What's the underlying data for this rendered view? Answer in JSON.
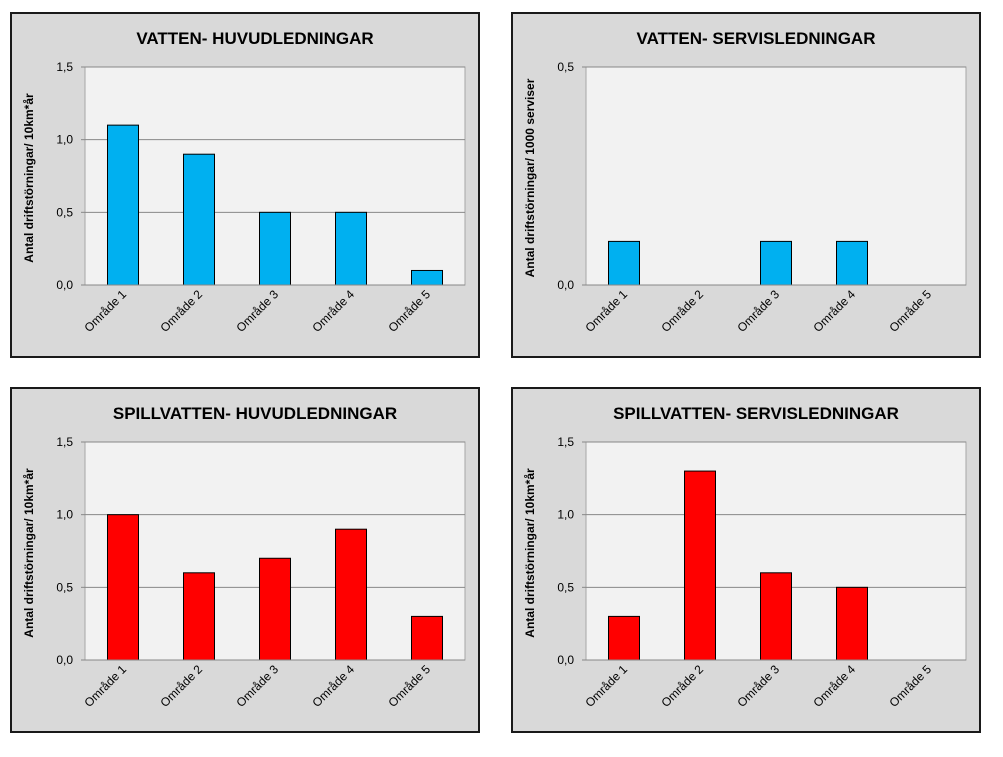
{
  "colors": {
    "water": "#00b0f0",
    "sewage": "#ff0000",
    "plot_bg": "#f2f2f2",
    "panel_bg": "#d9d9d9",
    "grid": "#888888"
  },
  "chart_data": [
    {
      "type": "bar",
      "title": "VATTEN- HUVUDLEDNINGAR",
      "ylabel": "Antal driftstörningar/ 10km*år",
      "xlabel": "",
      "categories": [
        "Område 1",
        "Område 2",
        "Område 3",
        "Område 4",
        "Område 5"
      ],
      "values": [
        1.1,
        0.9,
        0.5,
        0.5,
        0.1
      ],
      "ylim": [
        0,
        1.5
      ],
      "yticks": [
        0,
        0.5,
        1.0,
        1.5
      ],
      "ytick_labels": [
        "0,0",
        "0,5",
        "1,0",
        "1,5"
      ],
      "grid": true,
      "color": "#00b0f0"
    },
    {
      "type": "bar",
      "title": "VATTEN- SERVISLEDNINGAR",
      "ylabel": "Antal driftstörningar/ 1000 serviser",
      "xlabel": "",
      "categories": [
        "Område 1",
        "Område 2",
        "Område 3",
        "Område 4",
        "Område 5"
      ],
      "values": [
        0.1,
        0,
        0.1,
        0.1,
        0
      ],
      "ylim": [
        0,
        0.5
      ],
      "yticks": [
        0,
        0.5
      ],
      "ytick_labels": [
        "0,0",
        "0,5"
      ],
      "grid": true,
      "color": "#00b0f0"
    },
    {
      "type": "bar",
      "title": "SPILLVATTEN- HUVUDLEDNINGAR",
      "ylabel": "Antal driftstörningar/ 10km*år",
      "xlabel": "",
      "categories": [
        "Område 1",
        "Område 2",
        "Område 3",
        "Område 4",
        "Område 5"
      ],
      "values": [
        1.0,
        0.6,
        0.7,
        0.9,
        0.3
      ],
      "ylim": [
        0,
        1.5
      ],
      "yticks": [
        0,
        0.5,
        1.0,
        1.5
      ],
      "ytick_labels": [
        "0,0",
        "0,5",
        "1,0",
        "1,5"
      ],
      "grid": true,
      "color": "#ff0000"
    },
    {
      "type": "bar",
      "title": "SPILLVATTEN- SERVISLEDNINGAR",
      "ylabel": "Antal driftstörningar/ 10km*år",
      "xlabel": "",
      "categories": [
        "Område 1",
        "Område 2",
        "Område 3",
        "Område 4",
        "Område 5"
      ],
      "values": [
        0.3,
        1.3,
        0.6,
        0.5,
        0
      ],
      "ylim": [
        0,
        1.5
      ],
      "yticks": [
        0,
        0.5,
        1.0,
        1.5
      ],
      "ytick_labels": [
        "0,0",
        "0,5",
        "1,0",
        "1,5"
      ],
      "grid": true,
      "color": "#ff0000"
    }
  ]
}
